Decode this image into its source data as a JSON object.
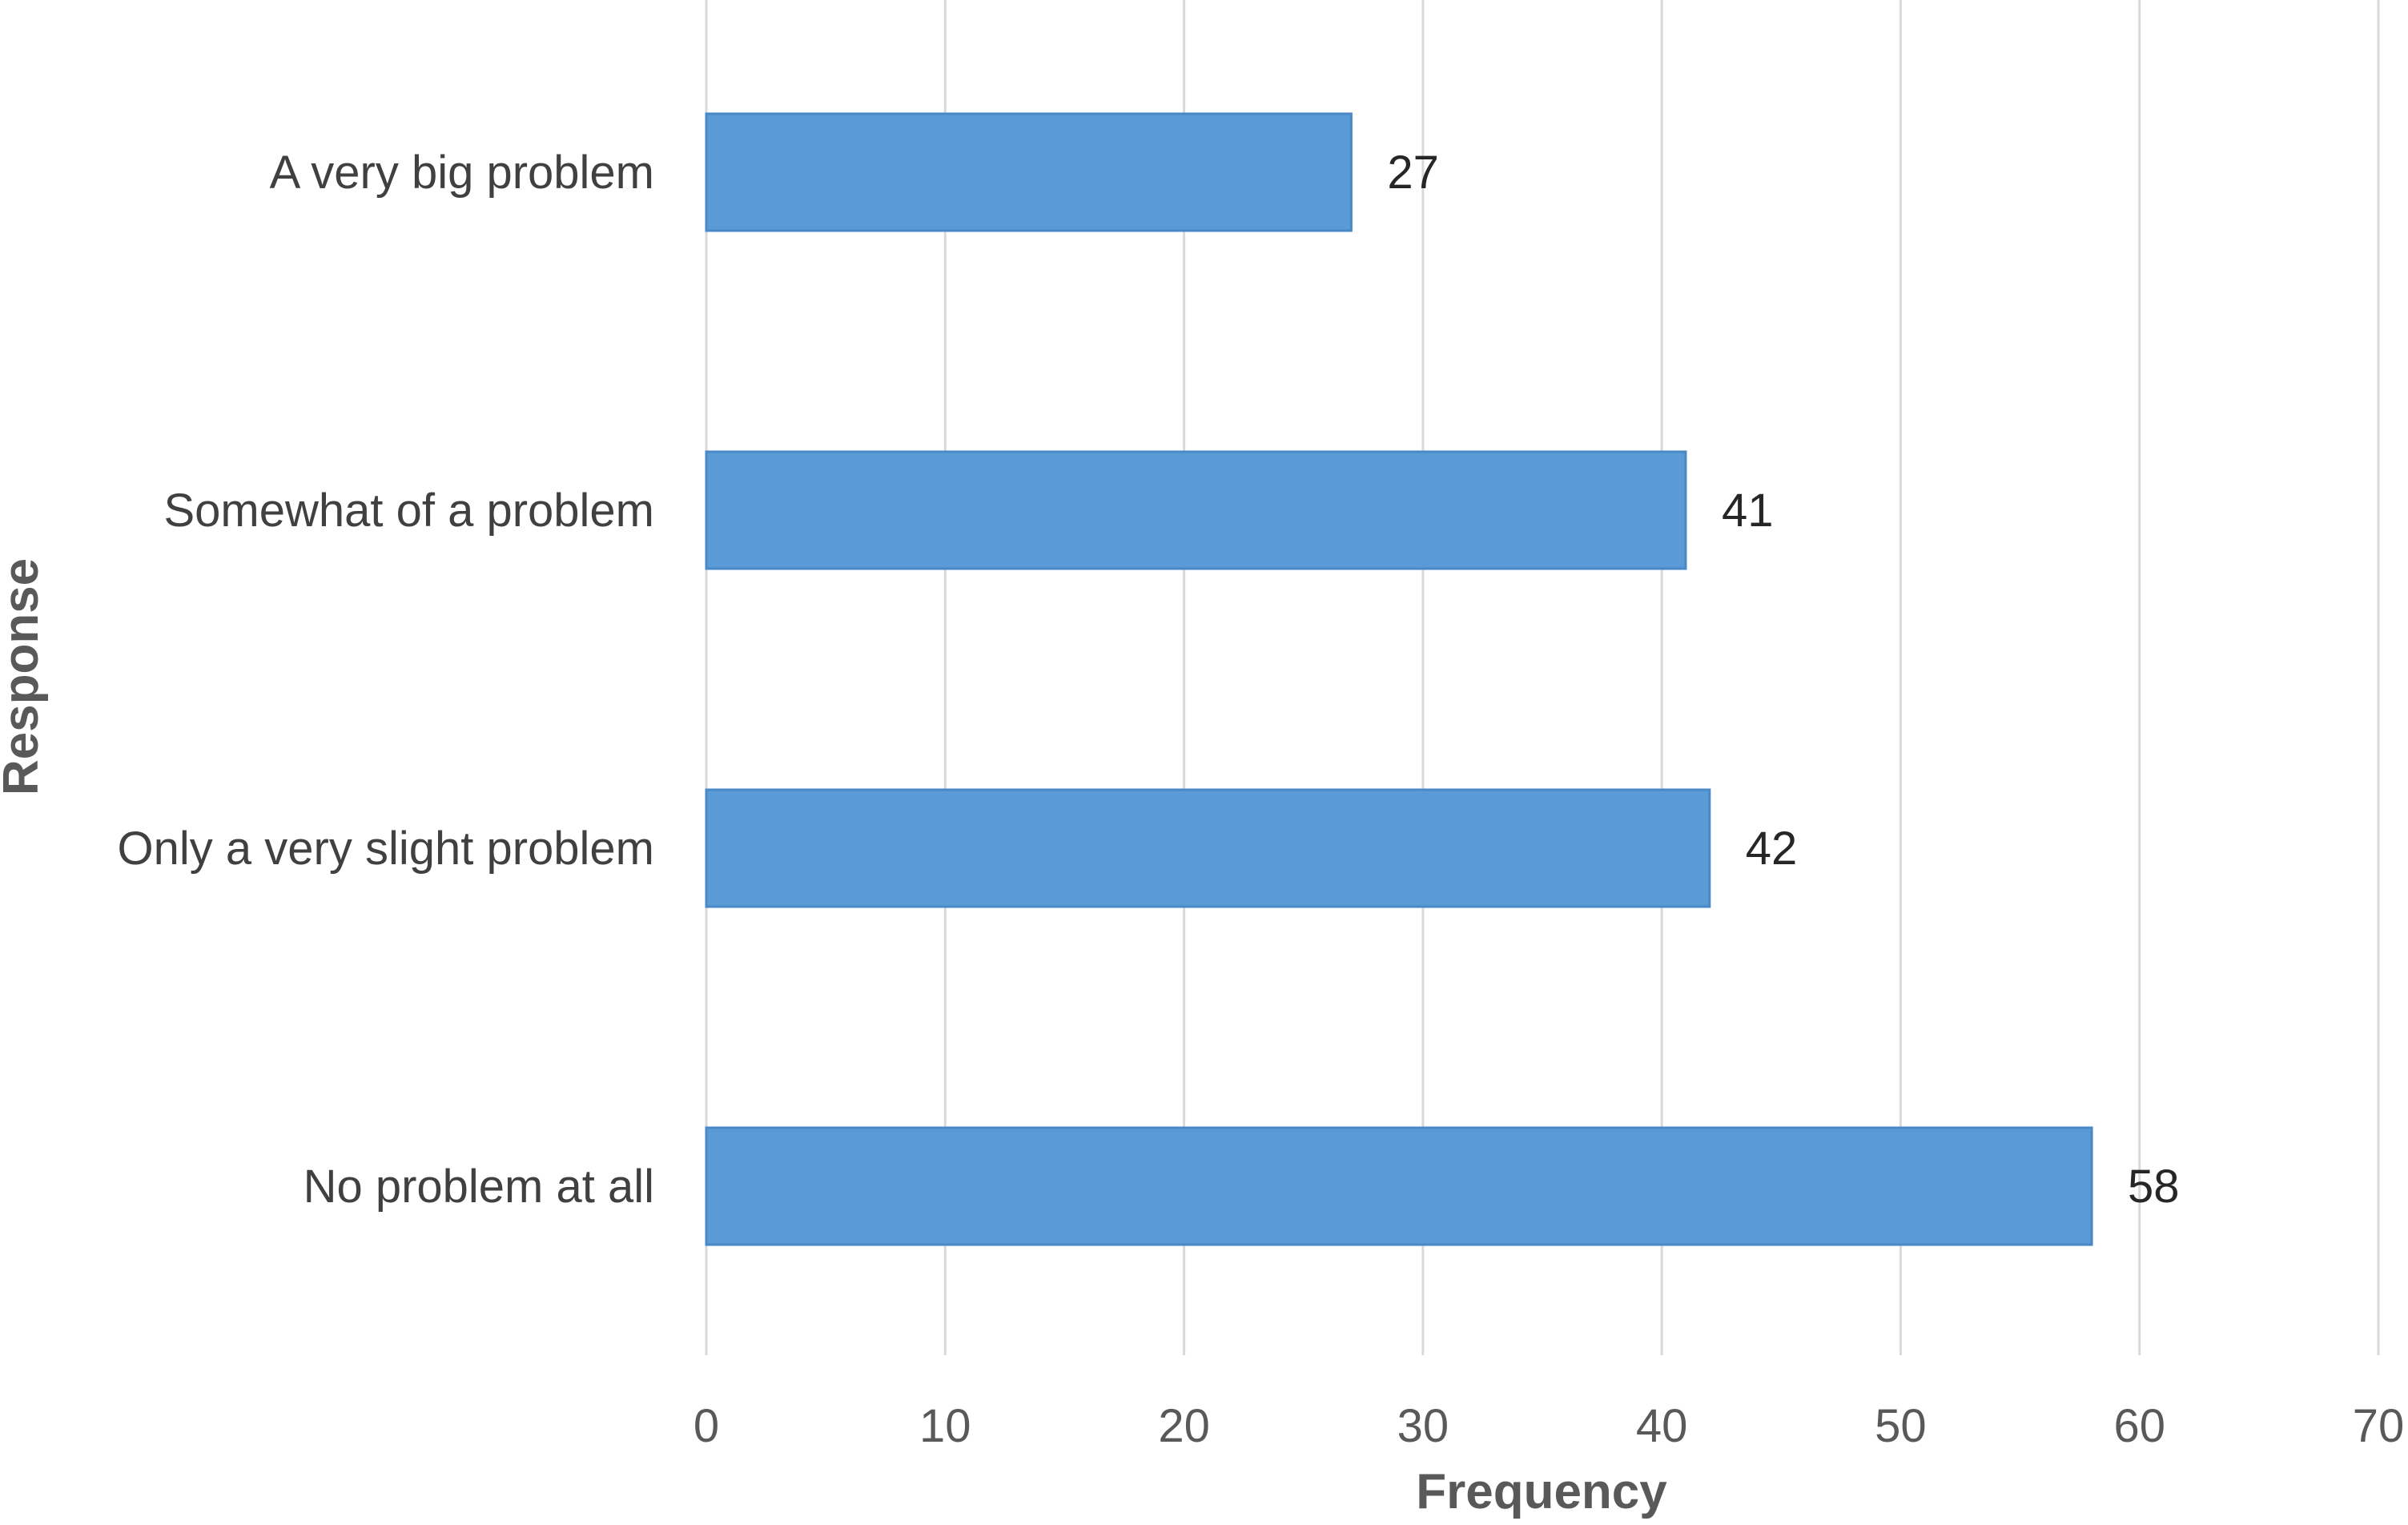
{
  "chart_data": {
    "type": "bar",
    "orientation": "horizontal",
    "categories": [
      "A very big problem",
      "Somewhat of a problem",
      "Only a very slight problem",
      "No problem at all"
    ],
    "values": [
      27,
      41,
      42,
      58
    ],
    "data_labels": [
      "27",
      "41",
      "42",
      "58"
    ],
    "title": "",
    "xlabel": "Frequency",
    "ylabel": "Response",
    "xlim": [
      0,
      70
    ],
    "x_ticks": [
      "0",
      "10",
      "20",
      "30",
      "40",
      "50",
      "60",
      "70"
    ],
    "grid": "vertical",
    "legend": "none",
    "bar_color": "#5b9bd5"
  }
}
